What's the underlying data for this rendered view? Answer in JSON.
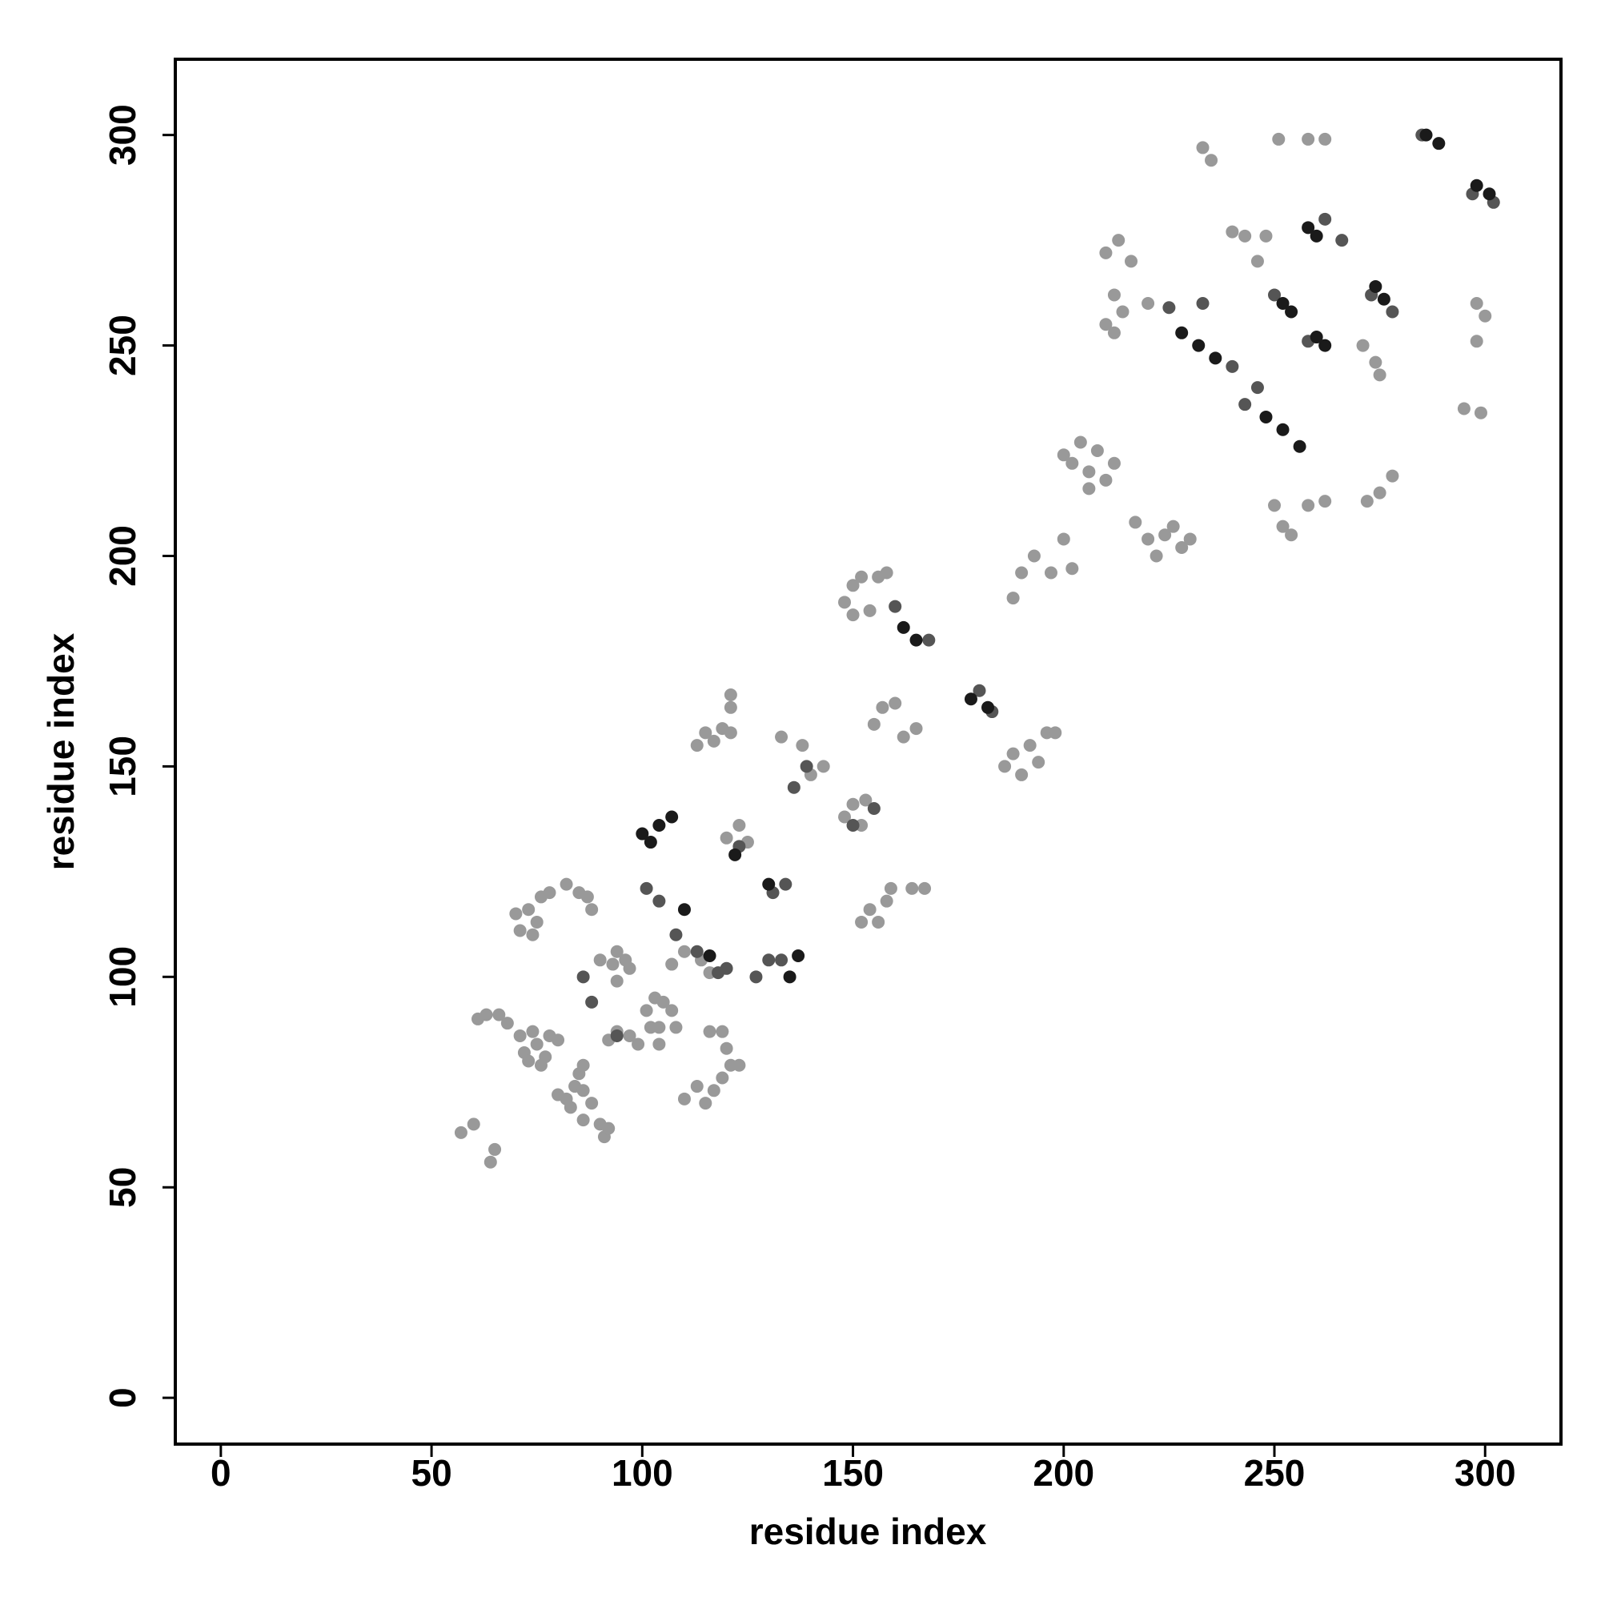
{
  "chart_data": {
    "type": "scatter",
    "xlabel": "residue index",
    "ylabel": "residue index",
    "xlim": [
      -10.8,
      318
    ],
    "ylim": [
      -11,
      318
    ],
    "xticks": [
      0,
      50,
      100,
      150,
      200,
      250,
      300
    ],
    "yticks": [
      0,
      50,
      100,
      150,
      200,
      250,
      300
    ],
    "series": [
      {
        "color": "#999999",
        "x": [
          57,
          60,
          64,
          65,
          61,
          63,
          66,
          68,
          71,
          72,
          73,
          75,
          76,
          78,
          80,
          74,
          77,
          70,
          71,
          73,
          75,
          76,
          78,
          82,
          85,
          87,
          88,
          74,
          80,
          82,
          84,
          86,
          85,
          86,
          88,
          86,
          90,
          91,
          92,
          83,
          90,
          93,
          94,
          96,
          97,
          94,
          92,
          94,
          97,
          99,
          104,
          101,
          103,
          105,
          107,
          104,
          102,
          108,
          113,
          115,
          117,
          119,
          121,
          121,
          121,
          110,
          113,
          115,
          117,
          119,
          121,
          123,
          120,
          119,
          116,
          107,
          110,
          114,
          116,
          120,
          123,
          125,
          133,
          138,
          140,
          143,
          148,
          150,
          152,
          154,
          156,
          158,
          150,
          148,
          150,
          152,
          153,
          152,
          154,
          156,
          158,
          159,
          164,
          167,
          155,
          157,
          160,
          162,
          165,
          186,
          188,
          190,
          192,
          194,
          196,
          198,
          188,
          190,
          193,
          197,
          200,
          202,
          200,
          202,
          204,
          206,
          208,
          210,
          212,
          206,
          210,
          212,
          214,
          212,
          210,
          213,
          216,
          220,
          217,
          220,
          222,
          224,
          226,
          228,
          230,
          233,
          235,
          240,
          243,
          246,
          248,
          250,
          252,
          254,
          258,
          262,
          251,
          258,
          262,
          272,
          275,
          278,
          271,
          274,
          275,
          298,
          300,
          298,
          295,
          299
        ],
        "values": [
          63,
          65,
          56,
          59,
          90,
          91,
          91,
          89,
          86,
          82,
          80,
          84,
          79,
          86,
          85,
          87,
          81,
          115,
          111,
          116,
          113,
          119,
          120,
          122,
          120,
          119,
          116,
          110,
          72,
          71,
          74,
          73,
          77,
          79,
          70,
          66,
          65,
          62,
          64,
          69,
          104,
          103,
          106,
          104,
          102,
          99,
          85,
          87,
          86,
          84,
          84,
          92,
          95,
          94,
          92,
          88,
          88,
          88,
          155,
          158,
          156,
          159,
          158,
          164,
          167,
          71,
          74,
          70,
          73,
          76,
          79,
          79,
          83,
          87,
          87,
          103,
          106,
          104,
          101,
          133,
          136,
          132,
          157,
          155,
          148,
          150,
          189,
          193,
          195,
          187,
          195,
          196,
          186,
          138,
          141,
          136,
          142,
          113,
          116,
          113,
          118,
          121,
          121,
          121,
          160,
          164,
          165,
          157,
          159,
          150,
          153,
          148,
          155,
          151,
          158,
          158,
          190,
          196,
          200,
          196,
          204,
          197,
          224,
          222,
          227,
          220,
          225,
          218,
          222,
          216,
          255,
          253,
          258,
          262,
          272,
          275,
          270,
          260,
          208,
          204,
          200,
          205,
          207,
          202,
          204,
          297,
          294,
          277,
          276,
          270,
          276,
          212,
          207,
          205,
          212,
          213,
          299,
          299,
          299,
          213,
          215,
          219,
          250,
          246,
          243,
          251,
          257,
          260,
          235,
          234
        ]
      },
      {
        "color": "#555555",
        "x": [
          86,
          88,
          94,
          101,
          104,
          108,
          113,
          118,
          120,
          123,
          127,
          130,
          134,
          133,
          136,
          139,
          150,
          155,
          160,
          168,
          180,
          183,
          225,
          233,
          243,
          250,
          258,
          262,
          266,
          273,
          278,
          285,
          297,
          302,
          240,
          246,
          131
        ],
        "values": [
          100,
          94,
          86,
          121,
          118,
          110,
          106,
          101,
          102,
          131,
          100,
          104,
          122,
          104,
          145,
          150,
          136,
          140,
          188,
          180,
          168,
          163,
          259,
          260,
          236,
          262,
          251,
          280,
          275,
          262,
          258,
          300,
          286,
          284,
          245,
          240,
          120
        ]
      },
      {
        "color": "#1a1a1a",
        "x": [
          100,
          102,
          104,
          107,
          110,
          116,
          122,
          130,
          135,
          137,
          162,
          165,
          178,
          182,
          228,
          232,
          236,
          248,
          252,
          256,
          252,
          254,
          258,
          260,
          260,
          262,
          274,
          276,
          286,
          289,
          298,
          301
        ],
        "values": [
          134,
          132,
          136,
          138,
          116,
          105,
          129,
          122,
          100,
          105,
          183,
          180,
          166,
          164,
          253,
          250,
          247,
          233,
          230,
          226,
          260,
          258,
          278,
          276,
          252,
          250,
          264,
          261,
          300,
          298,
          288,
          286
        ]
      }
    ]
  }
}
